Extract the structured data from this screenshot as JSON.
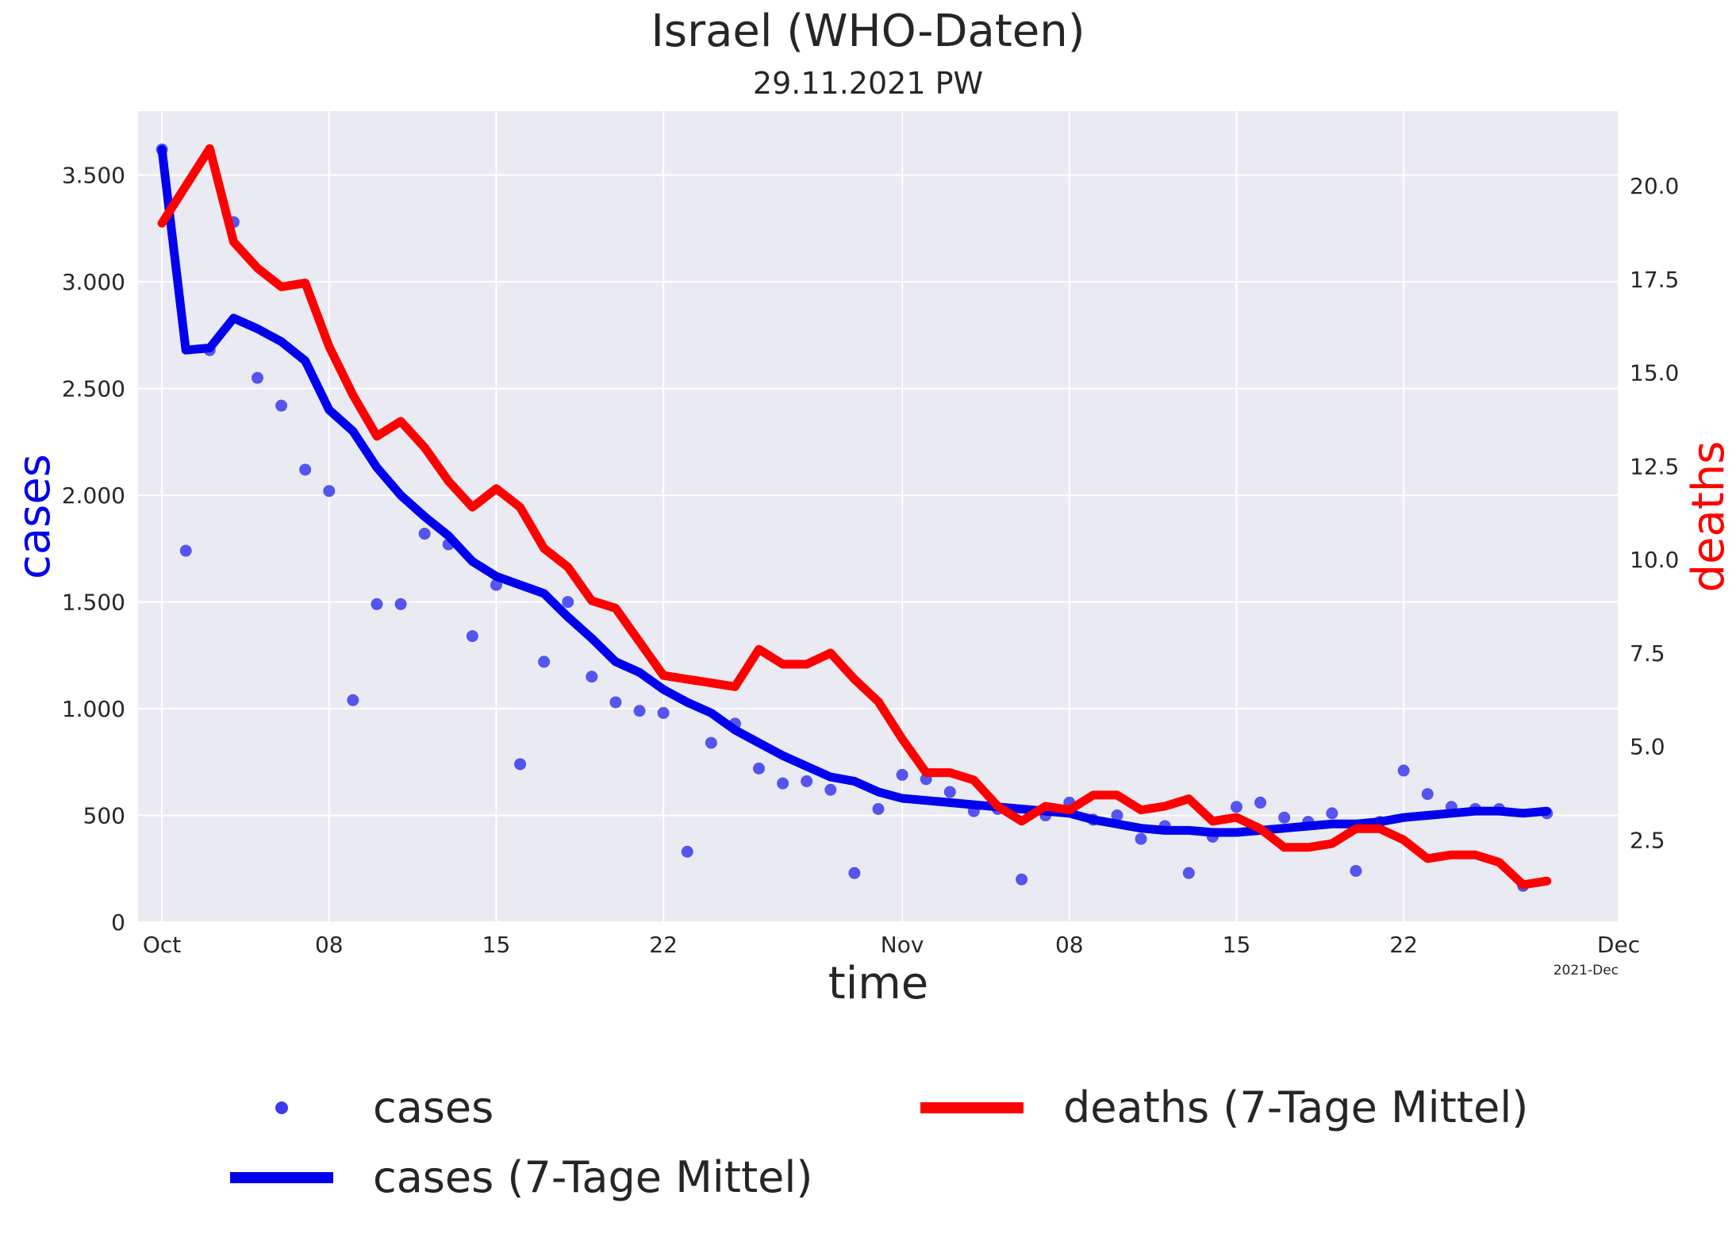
{
  "chart_data": {
    "type": "line",
    "title": "Israel  (WHO-Daten)",
    "subtitle": "29.11.2021 PW",
    "xlabel": "time",
    "ylabel_left": "cases",
    "ylabel_right": "deaths",
    "x_start": "2021-10-01",
    "xlim": [
      "2021-09-30",
      "2021-12-01"
    ],
    "x_corner_label": "2021-Dec",
    "x_ticks": [
      {
        "date": "2021-10-01",
        "label": "Oct"
      },
      {
        "date": "2021-10-08",
        "label": "08"
      },
      {
        "date": "2021-10-15",
        "label": "15"
      },
      {
        "date": "2021-10-22",
        "label": "22"
      },
      {
        "date": "2021-11-01",
        "label": "Nov"
      },
      {
        "date": "2021-11-08",
        "label": "08"
      },
      {
        "date": "2021-11-15",
        "label": "15"
      },
      {
        "date": "2021-11-22",
        "label": "22"
      },
      {
        "date": "2021-12-01",
        "label": "Dec"
      }
    ],
    "ylim_left": [
      0,
      3800
    ],
    "y_ticks_left": [
      {
        "value": 0,
        "label": "0"
      },
      {
        "value": 500,
        "label": "500"
      },
      {
        "value": 1000,
        "label": "1.000"
      },
      {
        "value": 1500,
        "label": "1.500"
      },
      {
        "value": 2000,
        "label": "2.000"
      },
      {
        "value": 2500,
        "label": "2.500"
      },
      {
        "value": 3000,
        "label": "3.000"
      },
      {
        "value": 3500,
        "label": "3.500"
      }
    ],
    "ylim_right": [
      0.3,
      22.0
    ],
    "y_ticks_right": [
      {
        "value": 2.5,
        "label": "2.5"
      },
      {
        "value": 5.0,
        "label": "5.0"
      },
      {
        "value": 7.5,
        "label": "7.5"
      },
      {
        "value": 10.0,
        "label": "10.0"
      },
      {
        "value": 12.5,
        "label": "12.5"
      },
      {
        "value": 15.0,
        "label": "15.0"
      },
      {
        "value": 17.5,
        "label": "17.5"
      },
      {
        "value": 20.0,
        "label": "20.0"
      }
    ],
    "grid": true,
    "legend_position": "bottom",
    "series": [
      {
        "name": "cases",
        "kind": "scatter",
        "axis": "left",
        "color": "#3a3af0",
        "values": [
          3620,
          1740,
          2680,
          3280,
          2550,
          2420,
          2120,
          2020,
          1040,
          1490,
          1490,
          1820,
          1770,
          1340,
          1580,
          740,
          1220,
          1500,
          1150,
          1030,
          990,
          980,
          330,
          840,
          930,
          720,
          650,
          660,
          620,
          230,
          530,
          690,
          670,
          610,
          520,
          530,
          200,
          500,
          560,
          480,
          500,
          390,
          450,
          230,
          400,
          540,
          560,
          490,
          470,
          510,
          240,
          470,
          710,
          600,
          540,
          530,
          530,
          170,
          510
        ]
      },
      {
        "name": "cases (7-Tage Mittel)",
        "kind": "line",
        "axis": "left",
        "color": "#0000ee",
        "values": [
          3620,
          2680,
          2690,
          2830,
          2780,
          2720,
          2630,
          2400,
          2300,
          2130,
          2000,
          1900,
          1810,
          1690,
          1620,
          1580,
          1540,
          1430,
          1330,
          1220,
          1170,
          1090,
          1030,
          980,
          900,
          840,
          780,
          730,
          680,
          660,
          610,
          580,
          570,
          560,
          550,
          540,
          530,
          520,
          510,
          480,
          460,
          440,
          430,
          430,
          420,
          420,
          430,
          440,
          450,
          460,
          460,
          470,
          490,
          500,
          510,
          520,
          520,
          510,
          520
        ]
      },
      {
        "name": "deaths (7-Tage Mittel)",
        "kind": "line",
        "axis": "right",
        "color": "#ff0000",
        "values": [
          19.0,
          20.0,
          21.0,
          18.5,
          17.8,
          17.3,
          17.4,
          15.7,
          14.4,
          13.3,
          13.7,
          13.0,
          12.1,
          11.4,
          11.9,
          11.4,
          10.3,
          9.8,
          8.9,
          8.7,
          7.8,
          6.9,
          6.8,
          6.7,
          6.6,
          7.6,
          7.2,
          7.2,
          7.5,
          6.8,
          6.2,
          5.2,
          4.3,
          4.3,
          4.1,
          3.4,
          3.0,
          3.4,
          3.3,
          3.7,
          3.7,
          3.3,
          3.4,
          3.6,
          3.0,
          3.1,
          2.8,
          2.3,
          2.3,
          2.4,
          2.8,
          2.8,
          2.5,
          2.0,
          2.1,
          2.1,
          1.9,
          1.3,
          1.4
        ]
      }
    ]
  }
}
